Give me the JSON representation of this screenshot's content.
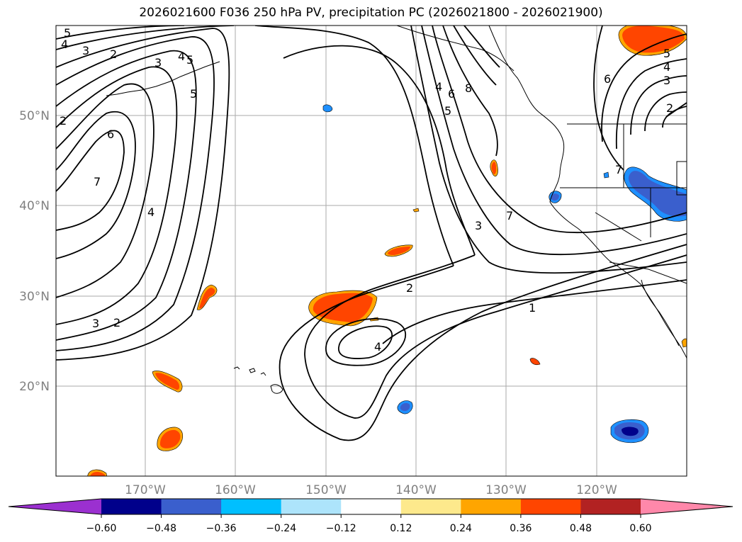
{
  "title": "2026021600 F036 250 hPa PV, precipitation PC (2026021800 - 2026021900)",
  "map": {
    "lat_labels": [
      "20°N",
      "30°N",
      "40°N",
      "50°N"
    ],
    "lon_labels": [
      "170°W",
      "160°W",
      "150°W",
      "140°W",
      "130°W",
      "120°W"
    ],
    "gridlines": true,
    "pv_contour_labels": [
      "1",
      "2",
      "3",
      "4",
      "5",
      "6",
      "7",
      "8"
    ]
  },
  "colorbar": {
    "ticks": [
      "−0.60",
      "−0.48",
      "−0.36",
      "−0.24",
      "−0.12",
      "0.12",
      "0.24",
      "0.36",
      "0.48",
      "0.60"
    ],
    "colors": [
      "#9b30d0",
      "#00008b",
      "#3a5fcd",
      "#00bfff",
      "#ade4fb",
      "#ffffff",
      "#fde98c",
      "#ffa500",
      "#ff4500",
      "#b22222",
      "#ff88aa"
    ]
  },
  "precip_colors": {
    "positive_edge": "#ffa500",
    "positive_core": "#ff4500",
    "negative_edge": "#1e90ff",
    "negative_mid": "#3a5fcd",
    "negative_core": "#00008b"
  }
}
